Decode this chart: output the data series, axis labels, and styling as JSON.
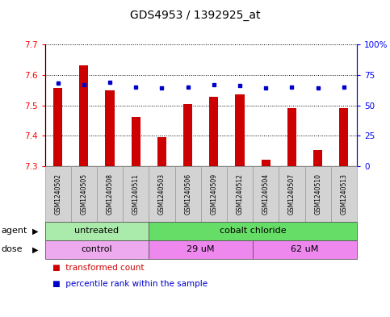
{
  "title": "GDS4953 / 1392925_at",
  "samples": [
    "GSM1240502",
    "GSM1240505",
    "GSM1240508",
    "GSM1240511",
    "GSM1240503",
    "GSM1240506",
    "GSM1240509",
    "GSM1240512",
    "GSM1240504",
    "GSM1240507",
    "GSM1240510",
    "GSM1240513"
  ],
  "red_values": [
    7.558,
    7.632,
    7.55,
    7.462,
    7.395,
    7.505,
    7.528,
    7.535,
    7.322,
    7.492,
    7.355,
    7.492
  ],
  "blue_values": [
    68,
    67,
    69,
    65,
    64,
    65,
    67,
    66,
    64,
    65,
    64,
    65
  ],
  "ylim_left": [
    7.3,
    7.7
  ],
  "ylim_right": [
    0,
    100
  ],
  "yticks_left": [
    7.3,
    7.4,
    7.5,
    7.6,
    7.7
  ],
  "yticks_right": [
    0,
    25,
    50,
    75,
    100
  ],
  "ytick_labels_right": [
    "0",
    "25",
    "50",
    "75",
    "100%"
  ],
  "bar_color": "#cc0000",
  "dot_color": "#0000cc",
  "agent_groups": [
    {
      "label": "untreated",
      "start": 0,
      "end": 4,
      "color": "#aaeaaa"
    },
    {
      "label": "cobalt chloride",
      "start": 4,
      "end": 12,
      "color": "#66dd66"
    }
  ],
  "dose_groups": [
    {
      "label": "control",
      "start": 0,
      "end": 4,
      "color": "#eeaaee"
    },
    {
      "label": "29 uM",
      "start": 4,
      "end": 8,
      "color": "#ee88ee"
    },
    {
      "label": "62 uM",
      "start": 8,
      "end": 12,
      "color": "#ee88ee"
    }
  ],
  "grid_color": "black",
  "bar_base": 7.3,
  "bar_width": 0.35,
  "title_fontsize": 10,
  "tick_fontsize": 7.5,
  "label_fontsize": 8,
  "annotation_fontsize": 8,
  "sample_fontsize": 5.5
}
